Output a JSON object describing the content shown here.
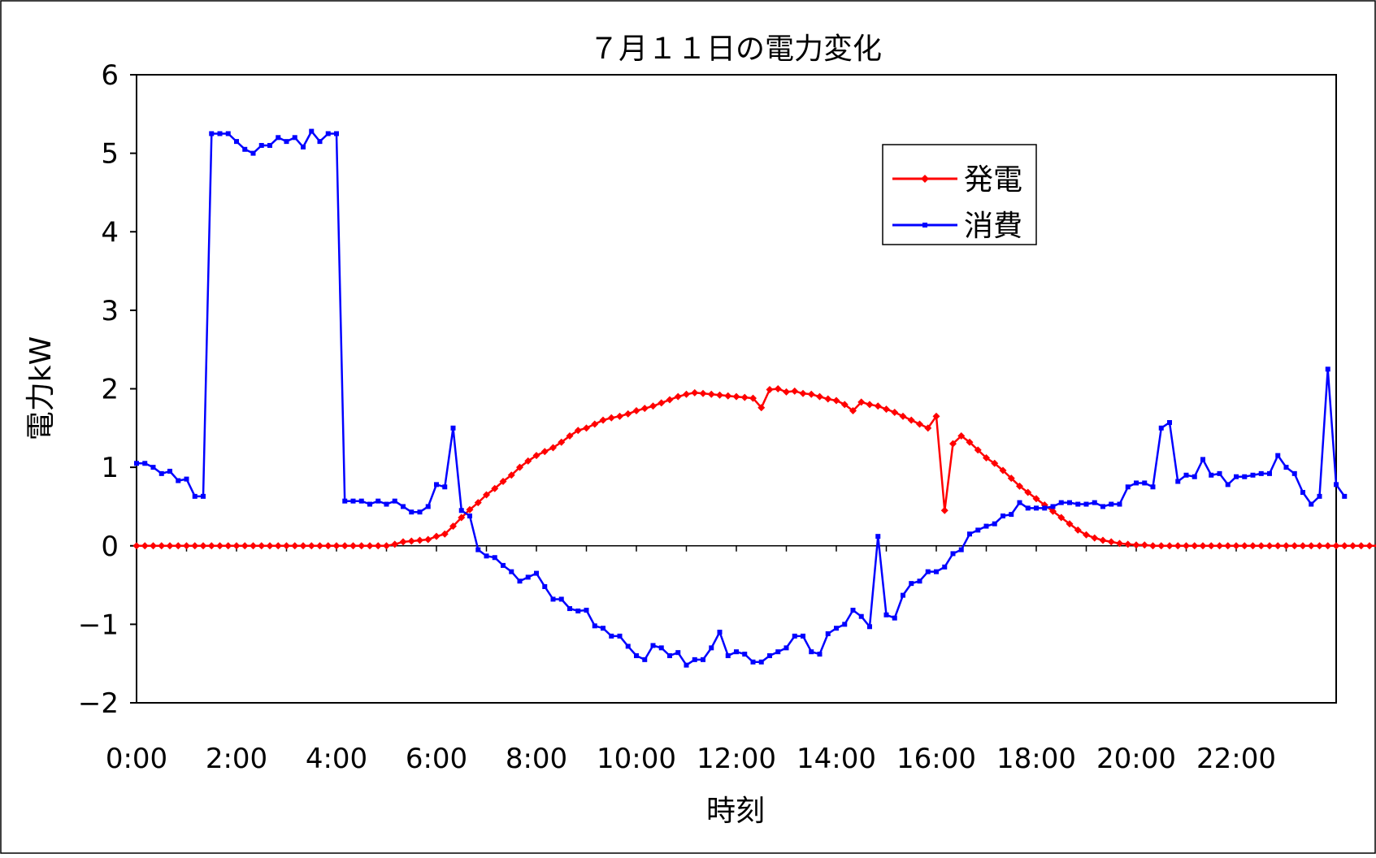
{
  "chart_data": {
    "type": "line",
    "title": "７月１１日の電力変化",
    "xlabel": "時刻",
    "ylabel": "電力kW",
    "ylim": [
      -2,
      6
    ],
    "yticks": [
      -2,
      -1,
      0,
      1,
      2,
      3,
      4,
      5,
      6
    ],
    "xlim": [
      0,
      24
    ],
    "xtick_values": [
      0,
      2,
      4,
      6,
      8,
      10,
      12,
      14,
      16,
      18,
      20,
      22
    ],
    "xtick_labels": [
      "0:00",
      "2:00",
      "4:00",
      "6:00",
      "8:00",
      "10:00",
      "12:00",
      "14:00",
      "16:00",
      "18:00",
      "20:00",
      "22:00"
    ],
    "grid": false,
    "legend_position": "top-right",
    "series": [
      {
        "name": "発電",
        "color": "#ff0000",
        "marker": "diamond",
        "x_step_minutes": 10,
        "values": [
          0,
          0,
          0,
          0,
          0,
          0,
          0,
          0,
          0,
          0,
          0,
          0,
          0,
          0,
          0,
          0,
          0,
          0,
          0,
          0,
          0,
          0,
          0,
          0,
          0,
          0,
          0,
          0,
          0,
          0,
          0,
          0.02,
          0.05,
          0.06,
          0.07,
          0.08,
          0.12,
          0.15,
          0.25,
          0.36,
          0.46,
          0.55,
          0.65,
          0.73,
          0.82,
          0.9,
          1.0,
          1.08,
          1.15,
          1.2,
          1.25,
          1.32,
          1.4,
          1.47,
          1.5,
          1.55,
          1.6,
          1.63,
          1.65,
          1.68,
          1.72,
          1.75,
          1.78,
          1.82,
          1.86,
          1.9,
          1.93,
          1.95,
          1.94,
          1.93,
          1.92,
          1.91,
          1.9,
          1.89,
          1.88,
          1.76,
          1.99,
          2.0,
          1.96,
          1.97,
          1.94,
          1.93,
          1.9,
          1.87,
          1.85,
          1.8,
          1.72,
          1.83,
          1.8,
          1.78,
          1.74,
          1.7,
          1.65,
          1.6,
          1.55,
          1.5,
          1.65,
          0.45,
          1.3,
          1.4,
          1.32,
          1.22,
          1.12,
          1.05,
          0.96,
          0.86,
          0.76,
          0.68,
          0.6,
          0.52,
          0.44,
          0.36,
          0.28,
          0.2,
          0.14,
          0.1,
          0.07,
          0.05,
          0.03,
          0.02,
          0.01,
          0.01,
          0,
          0,
          0,
          0,
          0,
          0,
          0,
          0,
          0,
          0,
          0,
          0,
          0,
          0,
          0,
          0,
          0,
          0,
          0,
          0,
          0,
          0,
          0,
          0,
          0,
          0,
          0,
          0,
          0,
          0,
          0,
          0,
          0,
          0
        ]
      },
      {
        "name": "消費",
        "color": "#0000ff",
        "marker": "square",
        "x_step_minutes": 10,
        "values": [
          1.05,
          1.05,
          1.0,
          0.92,
          0.95,
          0.83,
          0.85,
          0.63,
          0.63,
          5.25,
          5.25,
          5.25,
          5.15,
          5.05,
          5.0,
          5.1,
          5.1,
          5.2,
          5.15,
          5.2,
          5.08,
          5.28,
          5.15,
          5.25,
          5.25,
          0.57,
          0.57,
          0.57,
          0.53,
          0.57,
          0.53,
          0.57,
          0.5,
          0.43,
          0.43,
          0.5,
          0.78,
          0.75,
          1.5,
          0.45,
          0.38,
          -0.05,
          -0.13,
          -0.15,
          -0.25,
          -0.33,
          -0.45,
          -0.4,
          -0.35,
          -0.52,
          -0.68,
          -0.68,
          -0.8,
          -0.83,
          -0.82,
          -1.02,
          -1.05,
          -1.15,
          -1.15,
          -1.28,
          -1.4,
          -1.45,
          -1.27,
          -1.3,
          -1.4,
          -1.36,
          -1.52,
          -1.45,
          -1.45,
          -1.3,
          -1.1,
          -1.4,
          -1.35,
          -1.38,
          -1.48,
          -1.48,
          -1.4,
          -1.35,
          -1.3,
          -1.15,
          -1.15,
          -1.35,
          -1.38,
          -1.12,
          -1.05,
          -1.0,
          -0.82,
          -0.9,
          -1.03,
          0.12,
          -0.88,
          -0.92,
          -0.63,
          -0.48,
          -0.45,
          -0.33,
          -0.33,
          -0.27,
          -0.1,
          -0.05,
          0.15,
          0.2,
          0.25,
          0.28,
          0.38,
          0.4,
          0.55,
          0.48,
          0.48,
          0.48,
          0.5,
          0.55,
          0.55,
          0.53,
          0.53,
          0.55,
          0.5,
          0.53,
          0.53,
          0.75,
          0.8,
          0.8,
          0.75,
          1.5,
          1.57,
          0.82,
          0.9,
          0.88,
          1.1,
          0.9,
          0.92,
          0.78,
          0.88,
          0.88,
          0.9,
          0.92,
          0.92,
          1.15,
          1.0,
          0.92,
          0.68,
          0.53,
          0.63,
          2.25,
          0.78,
          0.63
        ]
      }
    ]
  }
}
